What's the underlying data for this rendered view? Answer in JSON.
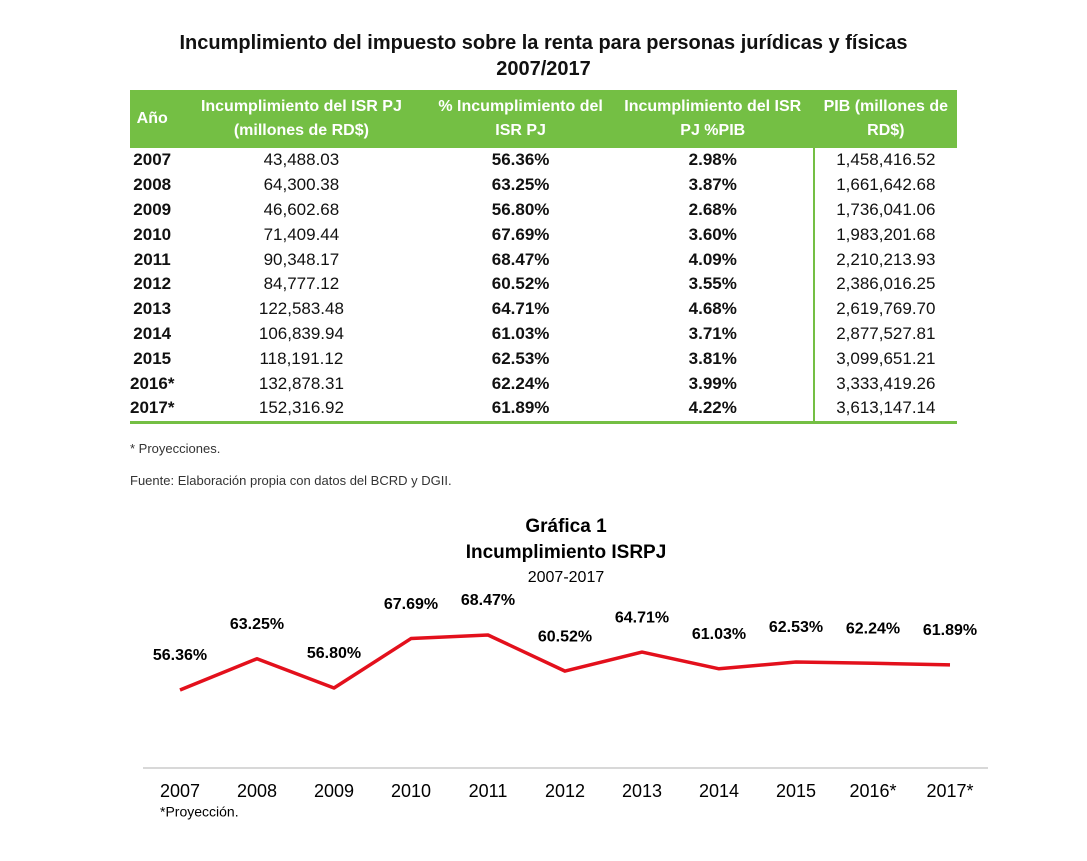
{
  "title": [
    "Incumplimiento del impuesto sobre la renta para personas jurídicas y físicas",
    "2007/2017"
  ],
  "table": {
    "headers": [
      "Año",
      "Incumplimiento del ISR PJ (millones de RD$)",
      "% Incumplimiento del ISR PJ",
      "Incumplimiento del ISR PJ %PIB",
      "PIB (millones de RD$)"
    ],
    "rows": [
      [
        "2007",
        "43,488.03",
        "56.36%",
        "2.98%",
        "1,458,416.52"
      ],
      [
        "2008",
        "64,300.38",
        "63.25%",
        "3.87%",
        "1,661,642.68"
      ],
      [
        "2009",
        "46,602.68",
        "56.80%",
        "2.68%",
        "1,736,041.06"
      ],
      [
        "2010",
        "71,409.44",
        "67.69%",
        "3.60%",
        "1,983,201.68"
      ],
      [
        "2011",
        "90,348.17",
        "68.47%",
        "4.09%",
        "2,210,213.93"
      ],
      [
        "2012",
        "84,777.12",
        "60.52%",
        "3.55%",
        "2,386,016.25"
      ],
      [
        "2013",
        "122,583.48",
        "64.71%",
        "4.68%",
        "2,619,769.70"
      ],
      [
        "2014",
        "106,839.94",
        "61.03%",
        "3.71%",
        "2,877,527.81"
      ],
      [
        "2015",
        "118,191.12",
        "62.53%",
        "3.81%",
        "3,099,651.21"
      ],
      [
        "2016*",
        "132,878.31",
        "62.24%",
        "3.99%",
        "3,333,419.26"
      ],
      [
        "2017*",
        "152,316.92",
        "61.89%",
        "4.22%",
        "3,613,147.14"
      ]
    ]
  },
  "notes": [
    "* Proyecciones.",
    "Fuente: Elaboración propia con datos del BCRD y DGII."
  ],
  "chart_data": {
    "type": "line",
    "title": "Gráfica 1",
    "subtitle": "Incumplimiento ISRPJ",
    "period": "2007-2017",
    "categories": [
      "2007",
      "2008",
      "2009",
      "2010",
      "2011",
      "2012",
      "2013",
      "2014",
      "2015",
      "2016*",
      "2017*"
    ],
    "values": [
      56.36,
      63.25,
      56.8,
      67.69,
      68.47,
      60.52,
      64.71,
      61.03,
      62.53,
      62.24,
      61.89
    ],
    "value_labels": [
      "56.36%",
      "63.25%",
      "56.80%",
      "67.69%",
      "68.47%",
      "60.52%",
      "64.71%",
      "61.03%",
      "62.53%",
      "62.24%",
      "61.89%"
    ],
    "color": "#e3101c",
    "note": "*Proyección."
  }
}
